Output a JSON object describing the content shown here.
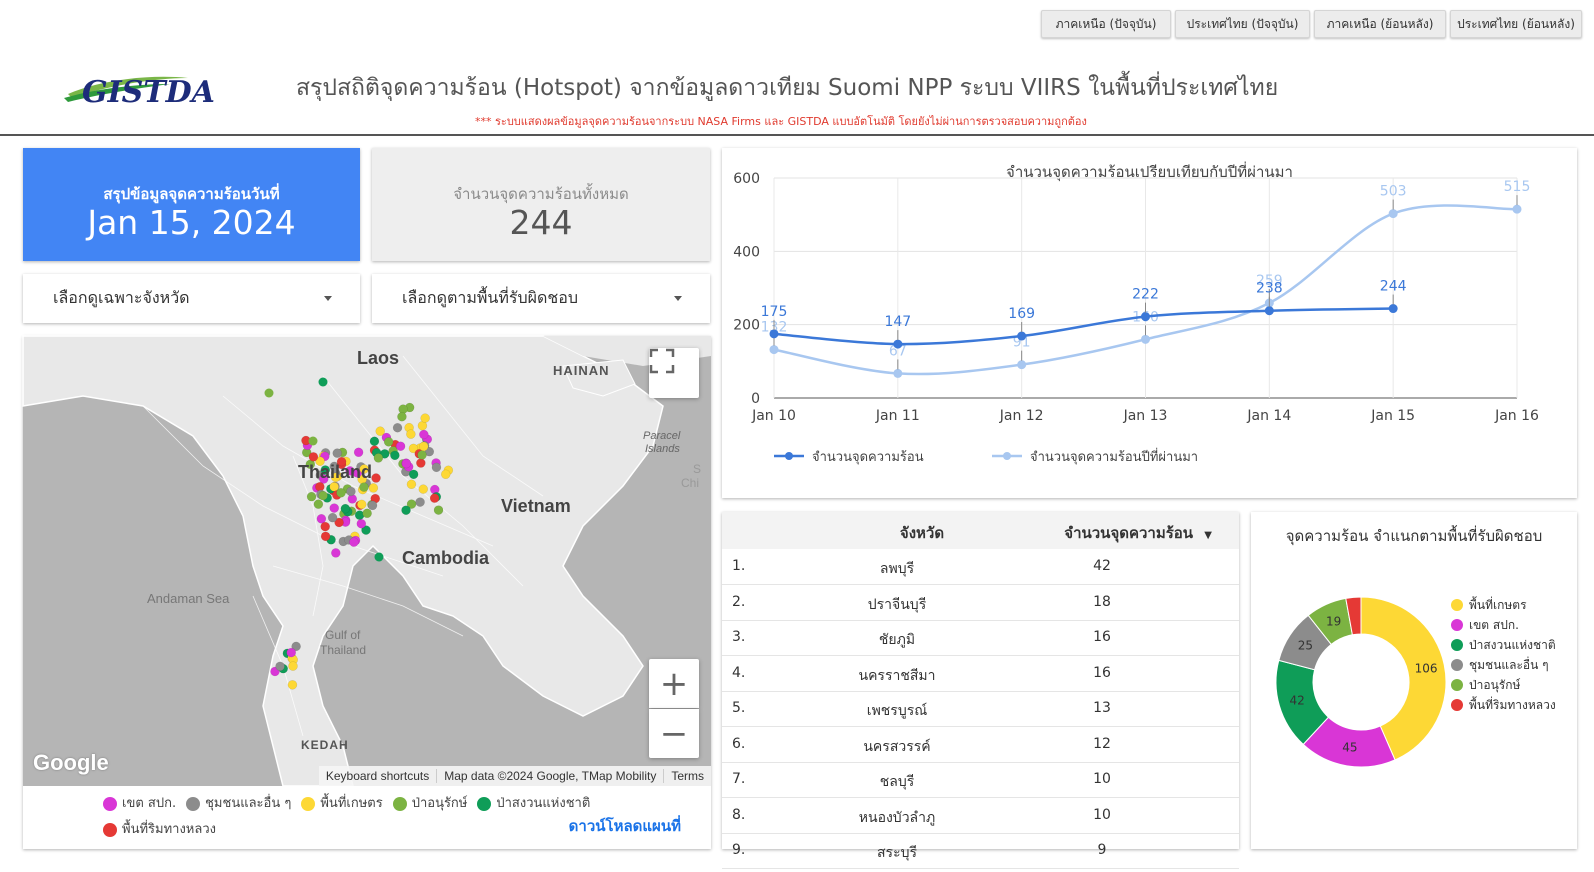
{
  "nav": {
    "buttons": [
      "ภาคเหนือ (ปัจจุบัน)",
      "ประเทศไทย (ปัจจุบัน)",
      "ภาคเหนือ (ย้อนหลัง)",
      "ประเทศไทย (ย้อนหลัง)"
    ]
  },
  "header": {
    "logo_text": "GISTDA",
    "title": "สรุปสถิติจุดความร้อน (Hotspot) จากข้อมูลดาวเทียม Suomi NPP ระบบ VIIRS  ในพื้นที่ประเทศไทย",
    "disclaimer": "*** ระบบแสดงผลข้อมูลจุดความร้อนจากระบบ NASA Firms และ GISTDA แบบอัตโนมัติ โดยยังไม่ผ่านการตรวจสอบความถูกต้อง"
  },
  "summary": {
    "date_label": "สรุปข้อมูลจุดความร้อนวันที่",
    "date_value": "Jan 15, 2024",
    "total_label": "จำนวนจุดความร้อนทั้งหมด",
    "total_value": "244"
  },
  "filters": {
    "province": "เลือกดูเฉพาะจังหวัด",
    "area": "เลือกดูตามพื้นที่รับผิดชอบ"
  },
  "map": {
    "labels": {
      "laos": "Laos",
      "hainan": "HAINAN",
      "thailand": "Thailand",
      "vietnam": "Vietnam",
      "cambodia": "Cambodia",
      "andaman": "Andaman Sea",
      "gulf": "Gulf of",
      "gulf2": "Thailand",
      "paracel": "Paracel",
      "paracel2": "Islands",
      "kedah": "KEDAH",
      "sc": "S",
      "chi": "Chi"
    },
    "google": "Google",
    "attribution": [
      "Keyboard shortcuts",
      "Map data ©2024 Google, TMap Mobility",
      "Terms"
    ],
    "legend": [
      {
        "label": "เขต สปก.",
        "color": "#d936d6"
      },
      {
        "label": "ชุมชนและอื่น ๆ",
        "color": "#8c8c8c"
      },
      {
        "label": "พื้นที่เกษตร",
        "color": "#fdd835"
      },
      {
        "label": "ป่าอนุรักษ์",
        "color": "#7cb342"
      },
      {
        "label": "ป่าสงวนแห่งชาติ",
        "color": "#0f9d58"
      },
      {
        "label": "พื้นที่ริมทางหลวง",
        "color": "#e53935"
      }
    ],
    "download": "ดาวน์โหลดแผนที่"
  },
  "chart_data": [
    {
      "type": "line",
      "title": "จำนวนจุดความร้อนเปรียบเทียบกับปีที่ผ่านมา",
      "x": [
        "Jan 10",
        "Jan 11",
        "Jan 12",
        "Jan 13",
        "Jan 14",
        "Jan 15",
        "Jan 16"
      ],
      "series": [
        {
          "name": "จำนวนจุดความร้อน",
          "color": "#3b78d8",
          "values": [
            175,
            147,
            169,
            222,
            238,
            244,
            null
          ]
        },
        {
          "name": "จำนวนจุดความร้อนปีที่ผ่านมา",
          "color": "#a8c7f0",
          "values": [
            132,
            67,
            91,
            160,
            259,
            503,
            515
          ]
        }
      ],
      "ylim": [
        0,
        600
      ],
      "yticks": [
        0,
        200,
        400,
        600
      ],
      "legend": "bottom-left"
    },
    {
      "type": "table",
      "columns": [
        "จังหวัด",
        "จำนวนจุดความร้อน"
      ],
      "rows": [
        {
          "rank": "1.",
          "province": "ลพบุรี",
          "count": 42
        },
        {
          "rank": "2.",
          "province": "ปราจีนบุรี",
          "count": 18
        },
        {
          "rank": "3.",
          "province": "ชัยภูมิ",
          "count": 16
        },
        {
          "rank": "4.",
          "province": "นครราชสีมา",
          "count": 16
        },
        {
          "rank": "5.",
          "province": "เพชรบูรณ์",
          "count": 13
        },
        {
          "rank": "6.",
          "province": "นครสวรรค์",
          "count": 12
        },
        {
          "rank": "7.",
          "province": "ชลบุรี",
          "count": 10
        },
        {
          "rank": "8.",
          "province": "หนองบัวลำภู",
          "count": 10
        },
        {
          "rank": "9.",
          "province": "สระบุรี",
          "count": 9
        }
      ]
    },
    {
      "type": "pie",
      "title": "จุดความร้อน จำแนกตามพื้นที่รับผิดชอบ",
      "slices": [
        {
          "label": "พื้นที่เกษตร",
          "value": 106,
          "color": "#fdd835"
        },
        {
          "label": "เขต สปก.",
          "value": 45,
          "color": "#d936d6"
        },
        {
          "label": "ป่าสงวนแห่งชาติ",
          "value": 42,
          "color": "#0f9d58"
        },
        {
          "label": "ชุมชนและอื่น ๆ",
          "value": 25,
          "color": "#8c8c8c"
        },
        {
          "label": "ป่าอนุรักษ์",
          "value": 19,
          "color": "#7cb342"
        },
        {
          "label": "พื้นที่ริมทางหลวง",
          "value": 7,
          "color": "#e53935"
        }
      ],
      "legend": "right"
    }
  ]
}
